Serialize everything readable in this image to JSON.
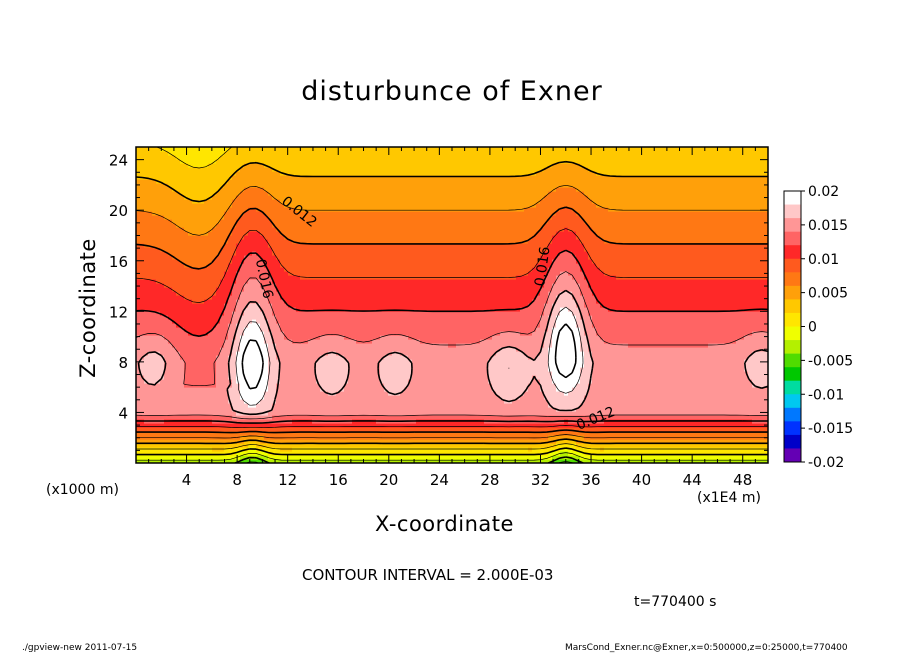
{
  "chart_data": {
    "type": "heatmap",
    "subtype": "filled-contour",
    "title": "disturbunce of Exner",
    "xlabel": "X-coordinate",
    "ylabel": "Z-coordinate",
    "x_unit_label": "(x1E4 m)",
    "z_unit_label": "(x1000 m)",
    "x_ticks": [
      4,
      8,
      12,
      16,
      20,
      24,
      28,
      32,
      36,
      40,
      44,
      48
    ],
    "y_ticks": [
      4,
      8,
      12,
      16,
      20,
      24
    ],
    "xlim": [
      0,
      50
    ],
    "ylim": [
      0,
      25
    ],
    "colorbar": {
      "labels": [
        "0.02",
        "0.015",
        "0.01",
        "0.005",
        "0",
        "-0.005",
        "-0.01",
        "-0.015",
        "-0.02"
      ],
      "colors": [
        "#ffffff",
        "#ffc8c8",
        "#ff9696",
        "#ff6464",
        "#ff2828",
        "#ff5a1e",
        "#ff7814",
        "#ffa00a",
        "#ffc800",
        "#ffe600",
        "#f0ff00",
        "#b4f000",
        "#50dc00",
        "#00c800",
        "#00dca0",
        "#00c8f0",
        "#0078ff",
        "#0032ff",
        "#0000c8",
        "#6400b4"
      ]
    },
    "contour_labels": [
      "0.012",
      "0.016",
      "0.016",
      "0.012"
    ],
    "contour_interval": "CONTOUR INTERVAL = 2.000E-03",
    "peaks": [
      {
        "x": 9.2,
        "z": 7.5,
        "value": 0.02
      },
      {
        "x": 34.0,
        "z": 9.0,
        "value": 0.02
      },
      {
        "x": 1.5,
        "z": 8.0,
        "value": 0.017
      },
      {
        "x": 15.5,
        "z": 7.5,
        "value": 0.017
      },
      {
        "x": 20.5,
        "z": 7.5,
        "value": 0.017
      },
      {
        "x": 29.5,
        "z": 7.5,
        "value": 0.018
      },
      {
        "x": 49.5,
        "z": 8.0,
        "value": 0.017
      }
    ]
  },
  "annotations": {
    "time": "t=770400 s",
    "footer_left": "./gpview-new   2011-07-15",
    "footer_right": "MarsCond_Exner.nc@Exner,x=0:500000,z=0:25000,t=770400"
  }
}
